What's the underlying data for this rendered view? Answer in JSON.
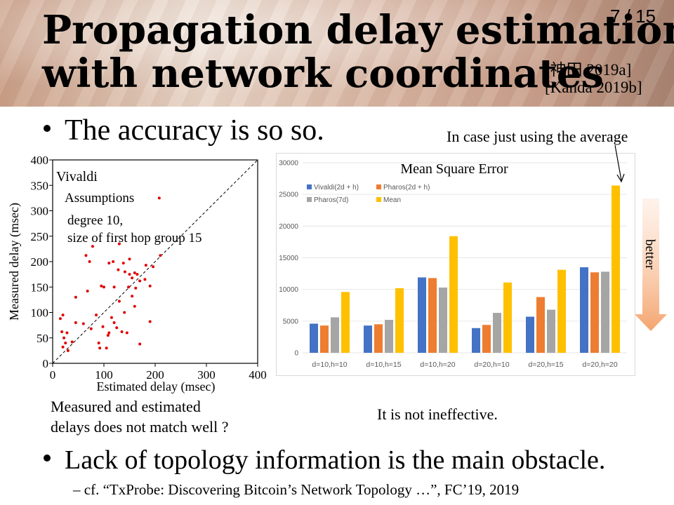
{
  "slide": {
    "title_line1": "Propagation delay estimation",
    "title_line2": "with network coordinates",
    "page": "7 / 15",
    "cite1": "[神田 2019a]",
    "cite2": "[Kanda 2019b]",
    "bullet1": "The accuracy is so so.",
    "bullet2": "Lack of topology information is the main obstacle.",
    "subbullet": "–   cf. “TxProbe: Discovering Bitcoin’s Network Topology  …”, FC’19, 2019",
    "avg_annotation": "In case just using the average",
    "note_left_1": "Measured and estimated",
    "note_left_2": "delays does not match well ?",
    "note_right": "It is not ineffective.",
    "better_label": "better",
    "colors": {
      "bullet": "#000000",
      "arrow": "#f4a46e"
    }
  },
  "chart_data": [
    {
      "type": "scatter",
      "xlabel": "Estimated delay (msec)",
      "ylabel": "Measured delay (msec)",
      "xlim": [
        0,
        400
      ],
      "ylim": [
        0,
        400
      ],
      "xticks": [
        "0",
        "100",
        "200",
        "300",
        "400"
      ],
      "yticks": [
        "0",
        "50",
        "100",
        "150",
        "200",
        "250",
        "300",
        "350",
        "400"
      ],
      "annotations": {
        "name": "Vivaldi",
        "assumptions": "Assumptions",
        "degree": "degree 10,",
        "group": "size of first hop group 15"
      },
      "reference_line": "y = x (dashed)",
      "point_color": "#e00000",
      "points": [
        [
          208,
          325
        ],
        [
          65,
          212
        ],
        [
          72,
          200
        ],
        [
          78,
          230
        ],
        [
          110,
          197
        ],
        [
          118,
          200
        ],
        [
          130,
          235
        ],
        [
          138,
          197
        ],
        [
          150,
          205
        ],
        [
          128,
          184
        ],
        [
          141,
          180
        ],
        [
          148,
          150
        ],
        [
          155,
          168
        ],
        [
          160,
          178
        ],
        [
          165,
          175
        ],
        [
          170,
          162
        ],
        [
          180,
          165
        ],
        [
          182,
          193
        ],
        [
          190,
          152
        ],
        [
          196,
          190
        ],
        [
          210,
          212
        ],
        [
          120,
          150
        ],
        [
          100,
          150
        ],
        [
          68,
          142
        ],
        [
          95,
          152
        ],
        [
          130,
          122
        ],
        [
          155,
          132
        ],
        [
          160,
          112
        ],
        [
          140,
          100
        ],
        [
          115,
          90
        ],
        [
          120,
          80
        ],
        [
          125,
          70
        ],
        [
          135,
          62
        ],
        [
          145,
          60
        ],
        [
          110,
          60
        ],
        [
          98,
          72
        ],
        [
          85,
          95
        ],
        [
          60,
          78
        ],
        [
          45,
          80
        ],
        [
          38,
          42
        ],
        [
          28,
          60
        ],
        [
          22,
          50
        ],
        [
          25,
          40
        ],
        [
          20,
          32
        ],
        [
          30,
          25
        ],
        [
          18,
          62
        ],
        [
          20,
          95
        ],
        [
          15,
          88
        ],
        [
          45,
          130
        ],
        [
          90,
          40
        ],
        [
          92,
          30
        ],
        [
          105,
          30
        ],
        [
          108,
          55
        ],
        [
          170,
          38
        ],
        [
          190,
          82
        ],
        [
          75,
          68
        ],
        [
          150,
          175
        ],
        [
          162,
          148
        ]
      ]
    },
    {
      "type": "bar",
      "title": "Mean Square Error",
      "categories": [
        "d=10,h=10",
        "d=10,h=15",
        "d=10,h=20",
        "d=20,h=10",
        "d=20,h=15",
        "d=20,h=20"
      ],
      "yticks": [
        "0",
        "5000",
        "10000",
        "15000",
        "20000",
        "25000",
        "30000"
      ],
      "ylim": [
        0,
        30000
      ],
      "legend_position": "top-left",
      "series": [
        {
          "name": "Vivaldi(2d + h)",
          "color": "#4472c4",
          "values": [
            4600,
            4300,
            11900,
            3900,
            5700,
            13500
          ]
        },
        {
          "name": "Pharos(2d + h)",
          "color": "#ed7d31",
          "values": [
            4300,
            4500,
            11800,
            4400,
            8800,
            12700
          ]
        },
        {
          "name": "Pharos(7d)",
          "color": "#a5a5a5",
          "values": [
            5600,
            5200,
            10300,
            6300,
            6800,
            12800
          ]
        },
        {
          "name": "Mean",
          "color": "#ffc000",
          "values": [
            9600,
            10200,
            18400,
            11100,
            13100,
            26400
          ]
        }
      ]
    }
  ]
}
